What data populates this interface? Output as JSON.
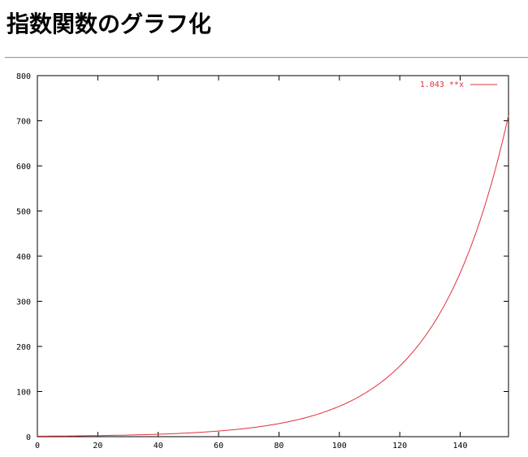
{
  "page": {
    "title": "指数関数のグラフ化"
  },
  "chart_data": {
    "type": "line",
    "title": "",
    "xlabel": "",
    "ylabel": "",
    "xlim": [
      0,
      156
    ],
    "ylim": [
      0,
      800
    ],
    "xticks": [
      0,
      20,
      40,
      60,
      80,
      100,
      120,
      140
    ],
    "yticks": [
      0,
      100,
      200,
      300,
      400,
      500,
      600,
      700,
      800
    ],
    "grid": false,
    "legend_placement": "top-right",
    "series": [
      {
        "name": "1.043 **x",
        "function": "1.043^x",
        "color": "#e0303a"
      }
    ]
  }
}
